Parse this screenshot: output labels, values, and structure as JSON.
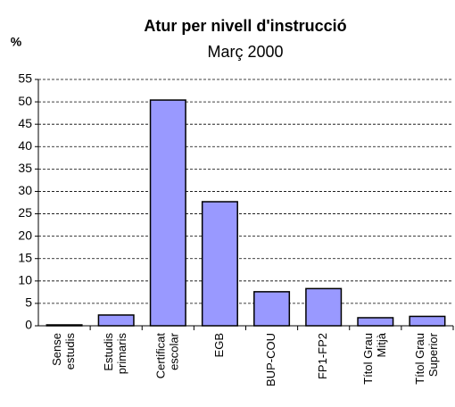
{
  "chart_data": {
    "type": "bar",
    "title": "Atur per nivell d'instrucció",
    "subtitle": "Març 2000",
    "y_label": "%",
    "categories": [
      [
        "Sense",
        "estudis"
      ],
      [
        "Estudis",
        "primaris"
      ],
      [
        "Certificat",
        "escolar"
      ],
      [
        "EGB"
      ],
      [
        "BUP-COU"
      ],
      [
        "FP1-FP2"
      ],
      [
        "Títol Grau",
        "Mitjà"
      ],
      [
        "Títol Grau",
        "Superior"
      ]
    ],
    "values": [
      0.2,
      2.4,
      50.4,
      27.7,
      7.6,
      8.3,
      1.8,
      2.1
    ],
    "color": "#9999ff",
    "ylim": [
      0,
      55
    ],
    "yticks": [
      0,
      5,
      10,
      15,
      20,
      25,
      30,
      35,
      40,
      45,
      50,
      55
    ],
    "grid": true
  }
}
